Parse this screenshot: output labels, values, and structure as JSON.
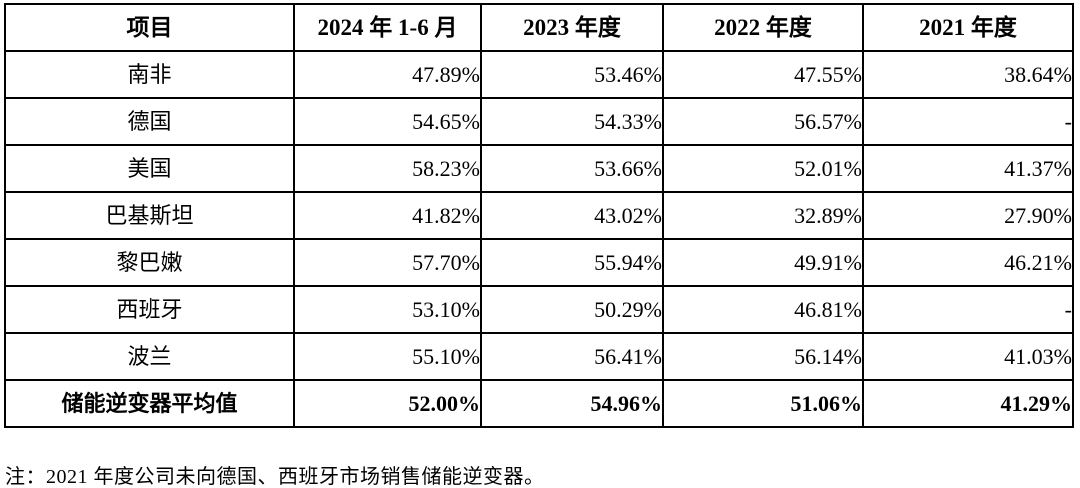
{
  "table": {
    "headers": [
      "项目",
      "2024 年 1-6 月",
      "2023 年度",
      "2022 年度",
      "2021 年度"
    ],
    "rows": [
      {
        "name": "南非",
        "values": [
          "47.89%",
          "53.46%",
          "47.55%",
          "38.64%"
        ]
      },
      {
        "name": "德国",
        "values": [
          "54.65%",
          "54.33%",
          "56.57%",
          "-"
        ]
      },
      {
        "name": "美国",
        "values": [
          "58.23%",
          "53.66%",
          "52.01%",
          "41.37%"
        ]
      },
      {
        "name": "巴基斯坦",
        "values": [
          "41.82%",
          "43.02%",
          "32.89%",
          "27.90%"
        ]
      },
      {
        "name": "黎巴嫩",
        "values": [
          "57.70%",
          "55.94%",
          "49.91%",
          "46.21%"
        ]
      },
      {
        "name": "西班牙",
        "values": [
          "53.10%",
          "50.29%",
          "46.81%",
          "-"
        ]
      },
      {
        "name": "波兰",
        "values": [
          "55.10%",
          "56.41%",
          "56.14%",
          "41.03%"
        ]
      }
    ],
    "summary_row": {
      "name": "储能逆变器平均值",
      "values": [
        "52.00%",
        "54.96%",
        "51.06%",
        "41.29%"
      ]
    }
  },
  "footnote": "注：2021 年度公司未向德国、西班牙市场销售储能逆变器。",
  "colors": {
    "border": "#000000",
    "text": "#000000",
    "background": "#ffffff"
  }
}
